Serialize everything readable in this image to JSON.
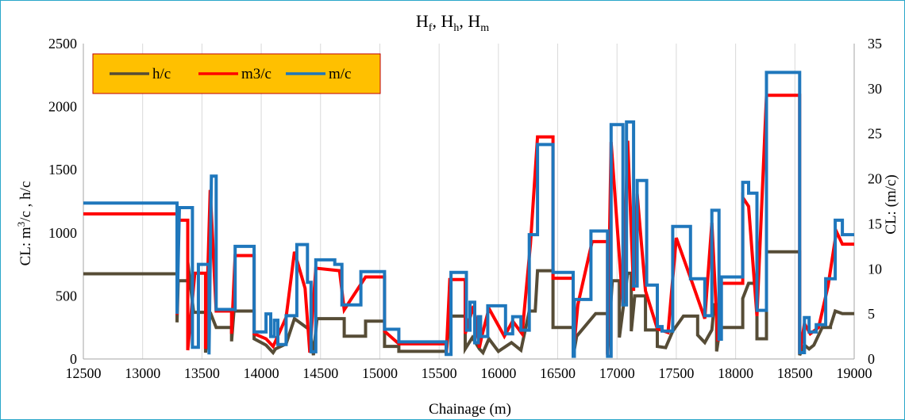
{
  "chart_data": {
    "type": "line",
    "title": "H_f, H_h, H_m",
    "xlabel": "Chainage  (m)",
    "ylabel_left": "CL: m³/c , h/c",
    "ylabel_right": "CL: (m/c)",
    "xlim": [
      12500,
      19000
    ],
    "ylim_left": [
      0,
      2500
    ],
    "ylim_right": [
      0,
      35
    ],
    "x_ticks": [
      12500,
      13000,
      13500,
      14000,
      14500,
      15000,
      15500,
      16000,
      16500,
      17000,
      17500,
      18000,
      18500,
      19000
    ],
    "y_left_ticks": [
      0,
      500,
      1000,
      1500,
      2000,
      2500
    ],
    "y_right_ticks": [
      0,
      5,
      10,
      15,
      20,
      25,
      30,
      35
    ],
    "grid": "vertical",
    "legend_position": "top-left",
    "legend_background": "#ffc000",
    "series": [
      {
        "name": "h/c",
        "color": "#564c36",
        "axis": "left",
        "points": [
          [
            12500,
            675
          ],
          [
            13290,
            675
          ],
          [
            13290,
            290
          ],
          [
            13300,
            620
          ],
          [
            13380,
            620
          ],
          [
            13380,
            770
          ],
          [
            13430,
            370
          ],
          [
            13530,
            370
          ],
          [
            13530,
            50
          ],
          [
            13570,
            370
          ],
          [
            13620,
            250
          ],
          [
            13750,
            250
          ],
          [
            13750,
            140
          ],
          [
            13770,
            380
          ],
          [
            13940,
            380
          ],
          [
            13940,
            160
          ],
          [
            14040,
            110
          ],
          [
            14100,
            50
          ],
          [
            14120,
            80
          ],
          [
            14210,
            120
          ],
          [
            14280,
            320
          ],
          [
            14410,
            230
          ],
          [
            14440,
            30
          ],
          [
            14470,
            320
          ],
          [
            14700,
            320
          ],
          [
            14700,
            180
          ],
          [
            14880,
            180
          ],
          [
            14880,
            300
          ],
          [
            15040,
            300
          ],
          [
            15040,
            100
          ],
          [
            15160,
            100
          ],
          [
            15160,
            60
          ],
          [
            15560,
            60
          ],
          [
            15560,
            40
          ],
          [
            15590,
            340
          ],
          [
            15720,
            340
          ],
          [
            15720,
            80
          ],
          [
            15780,
            170
          ],
          [
            15840,
            80
          ],
          [
            15870,
            50
          ],
          [
            15920,
            160
          ],
          [
            16000,
            60
          ],
          [
            16110,
            130
          ],
          [
            16190,
            70
          ],
          [
            16260,
            380
          ],
          [
            16310,
            380
          ],
          [
            16330,
            700
          ],
          [
            16460,
            700
          ],
          [
            16460,
            250
          ],
          [
            16630,
            250
          ],
          [
            16630,
            20
          ],
          [
            16660,
            180
          ],
          [
            16820,
            360
          ],
          [
            16920,
            360
          ],
          [
            16920,
            40
          ],
          [
            16960,
            620
          ],
          [
            17020,
            620
          ],
          [
            17020,
            170
          ],
          [
            17090,
            680
          ],
          [
            17120,
            680
          ],
          [
            17120,
            220
          ],
          [
            17150,
            500
          ],
          [
            17240,
            500
          ],
          [
            17240,
            230
          ],
          [
            17340,
            230
          ],
          [
            17340,
            100
          ],
          [
            17410,
            90
          ],
          [
            17470,
            220
          ],
          [
            17560,
            340
          ],
          [
            17680,
            340
          ],
          [
            17680,
            190
          ],
          [
            17740,
            130
          ],
          [
            17800,
            230
          ],
          [
            17820,
            430
          ],
          [
            17840,
            430
          ],
          [
            17840,
            60
          ],
          [
            17870,
            250
          ],
          [
            18060,
            250
          ],
          [
            18060,
            480
          ],
          [
            18110,
            600
          ],
          [
            18180,
            600
          ],
          [
            18180,
            160
          ],
          [
            18260,
            160
          ],
          [
            18260,
            850
          ],
          [
            18540,
            850
          ],
          [
            18540,
            30
          ],
          [
            18580,
            110
          ],
          [
            18620,
            80
          ],
          [
            18660,
            110
          ],
          [
            18730,
            250
          ],
          [
            18800,
            250
          ],
          [
            18800,
            260
          ],
          [
            18840,
            380
          ],
          [
            18900,
            360
          ],
          [
            19000,
            360
          ]
        ]
      },
      {
        "name": "m3/c",
        "color": "#ff0000",
        "axis": "left",
        "points": [
          [
            12500,
            1150
          ],
          [
            13290,
            1150
          ],
          [
            13290,
            350
          ],
          [
            13300,
            1100
          ],
          [
            13380,
            1100
          ],
          [
            13380,
            70
          ],
          [
            13440,
            680
          ],
          [
            13530,
            680
          ],
          [
            13530,
            80
          ],
          [
            13570,
            1340
          ],
          [
            13620,
            380
          ],
          [
            13750,
            380
          ],
          [
            13750,
            200
          ],
          [
            13780,
            820
          ],
          [
            13940,
            820
          ],
          [
            13940,
            200
          ],
          [
            14040,
            160
          ],
          [
            14100,
            100
          ],
          [
            14120,
            140
          ],
          [
            14210,
            330
          ],
          [
            14280,
            850
          ],
          [
            14370,
            560
          ],
          [
            14410,
            50
          ],
          [
            14460,
            720
          ],
          [
            14660,
            700
          ],
          [
            14700,
            390
          ],
          [
            14880,
            650
          ],
          [
            15040,
            650
          ],
          [
            15040,
            220
          ],
          [
            15160,
            120
          ],
          [
            15560,
            120
          ],
          [
            15560,
            30
          ],
          [
            15590,
            630
          ],
          [
            15720,
            630
          ],
          [
            15720,
            200
          ],
          [
            15790,
            420
          ],
          [
            15840,
            90
          ],
          [
            15860,
            180
          ],
          [
            15920,
            400
          ],
          [
            16050,
            180
          ],
          [
            16120,
            300
          ],
          [
            16200,
            200
          ],
          [
            16270,
            910
          ],
          [
            16330,
            1760
          ],
          [
            16460,
            1760
          ],
          [
            16460,
            640
          ],
          [
            16630,
            640
          ],
          [
            16630,
            30
          ],
          [
            16670,
            430
          ],
          [
            16790,
            930
          ],
          [
            16920,
            930
          ],
          [
            16920,
            30
          ],
          [
            16950,
            1720
          ],
          [
            17050,
            420
          ],
          [
            17090,
            1730
          ],
          [
            17140,
            540
          ],
          [
            17170,
            1310
          ],
          [
            17240,
            540
          ],
          [
            17340,
            240
          ],
          [
            17430,
            210
          ],
          [
            17500,
            960
          ],
          [
            17640,
            590
          ],
          [
            17740,
            320
          ],
          [
            17800,
            1080
          ],
          [
            17850,
            140
          ],
          [
            17880,
            600
          ],
          [
            18060,
            600
          ],
          [
            18060,
            1280
          ],
          [
            18110,
            1210
          ],
          [
            18180,
            340
          ],
          [
            18260,
            2090
          ],
          [
            18540,
            2090
          ],
          [
            18540,
            40
          ],
          [
            18580,
            280
          ],
          [
            18630,
            200
          ],
          [
            18700,
            250
          ],
          [
            18780,
            580
          ],
          [
            18850,
            1010
          ],
          [
            18900,
            910
          ],
          [
            19000,
            910
          ]
        ]
      },
      {
        "name": "m/c",
        "color": "#1f77bc",
        "axis": "right",
        "points": [
          [
            12500,
            17.3
          ],
          [
            13290,
            17.3
          ],
          [
            13290,
            5
          ],
          [
            13310,
            16.8
          ],
          [
            13420,
            16.8
          ],
          [
            13420,
            1.3
          ],
          [
            13470,
            1.3
          ],
          [
            13470,
            10.5
          ],
          [
            13560,
            10.5
          ],
          [
            13560,
            0.5
          ],
          [
            13580,
            20.3
          ],
          [
            13620,
            20.3
          ],
          [
            13620,
            5.5
          ],
          [
            13780,
            5.5
          ],
          [
            13780,
            12.5
          ],
          [
            13940,
            12.5
          ],
          [
            13940,
            3
          ],
          [
            14040,
            3
          ],
          [
            14040,
            5
          ],
          [
            14080,
            5
          ],
          [
            14080,
            2.5
          ],
          [
            14110,
            2.5
          ],
          [
            14110,
            4.3
          ],
          [
            14140,
            4.3
          ],
          [
            14140,
            1.6
          ],
          [
            14210,
            1.6
          ],
          [
            14210,
            4.8
          ],
          [
            14300,
            4.8
          ],
          [
            14300,
            12.7
          ],
          [
            14390,
            12.7
          ],
          [
            14390,
            8.5
          ],
          [
            14420,
            8.5
          ],
          [
            14420,
            0.8
          ],
          [
            14460,
            0.8
          ],
          [
            14460,
            11
          ],
          [
            14620,
            11
          ],
          [
            14620,
            10.5
          ],
          [
            14680,
            10.5
          ],
          [
            14680,
            6
          ],
          [
            14840,
            6
          ],
          [
            14840,
            9.7
          ],
          [
            15040,
            9.7
          ],
          [
            15040,
            3.3
          ],
          [
            15160,
            3.3
          ],
          [
            15160,
            1.9
          ],
          [
            15560,
            1.9
          ],
          [
            15560,
            0.5
          ],
          [
            15600,
            0.5
          ],
          [
            15600,
            9.6
          ],
          [
            15730,
            9.6
          ],
          [
            15730,
            3.2
          ],
          [
            15760,
            3.2
          ],
          [
            15760,
            6.3
          ],
          [
            15800,
            6.3
          ],
          [
            15800,
            1.8
          ],
          [
            15830,
            1.8
          ],
          [
            15830,
            4.7
          ],
          [
            15850,
            4.7
          ],
          [
            15850,
            2.5
          ],
          [
            15910,
            2.5
          ],
          [
            15910,
            5.9
          ],
          [
            16060,
            5.9
          ],
          [
            16060,
            2.8
          ],
          [
            16120,
            2.8
          ],
          [
            16120,
            4.7
          ],
          [
            16190,
            4.7
          ],
          [
            16190,
            3.2
          ],
          [
            16260,
            3.2
          ],
          [
            16260,
            13.8
          ],
          [
            16330,
            13.8
          ],
          [
            16330,
            23.8
          ],
          [
            16460,
            23.8
          ],
          [
            16460,
            9.6
          ],
          [
            16630,
            9.6
          ],
          [
            16630,
            0.3
          ],
          [
            16640,
            0.3
          ],
          [
            16640,
            6.6
          ],
          [
            16780,
            6.6
          ],
          [
            16780,
            14.2
          ],
          [
            16920,
            14.2
          ],
          [
            16920,
            0.3
          ],
          [
            16950,
            0.3
          ],
          [
            16950,
            26
          ],
          [
            17050,
            26
          ],
          [
            17050,
            6
          ],
          [
            17080,
            6
          ],
          [
            17080,
            26.3
          ],
          [
            17140,
            26.3
          ],
          [
            17140,
            8.1
          ],
          [
            17170,
            8.1
          ],
          [
            17170,
            19.8
          ],
          [
            17250,
            19.8
          ],
          [
            17250,
            8.2
          ],
          [
            17340,
            8.2
          ],
          [
            17340,
            3.6
          ],
          [
            17380,
            3.6
          ],
          [
            17380,
            3.1
          ],
          [
            17470,
            3.1
          ],
          [
            17470,
            14.7
          ],
          [
            17620,
            14.7
          ],
          [
            17620,
            8.9
          ],
          [
            17740,
            8.9
          ],
          [
            17740,
            4.8
          ],
          [
            17800,
            4.8
          ],
          [
            17800,
            16.5
          ],
          [
            17860,
            16.5
          ],
          [
            17860,
            2.2
          ],
          [
            17880,
            2.2
          ],
          [
            17880,
            9.1
          ],
          [
            18060,
            9.1
          ],
          [
            18060,
            19.6
          ],
          [
            18110,
            19.6
          ],
          [
            18110,
            18.4
          ],
          [
            18180,
            18.4
          ],
          [
            18180,
            5.4
          ],
          [
            18260,
            5.4
          ],
          [
            18260,
            31.8
          ],
          [
            18540,
            31.8
          ],
          [
            18540,
            0.7
          ],
          [
            18580,
            0.7
          ],
          [
            18580,
            4.6
          ],
          [
            18620,
            4.6
          ],
          [
            18620,
            3
          ],
          [
            18680,
            3
          ],
          [
            18680,
            3.8
          ],
          [
            18760,
            3.8
          ],
          [
            18760,
            8.9
          ],
          [
            18840,
            8.9
          ],
          [
            18840,
            15.4
          ],
          [
            18900,
            15.4
          ],
          [
            18900,
            13.8
          ],
          [
            19000,
            13.8
          ]
        ]
      }
    ]
  }
}
